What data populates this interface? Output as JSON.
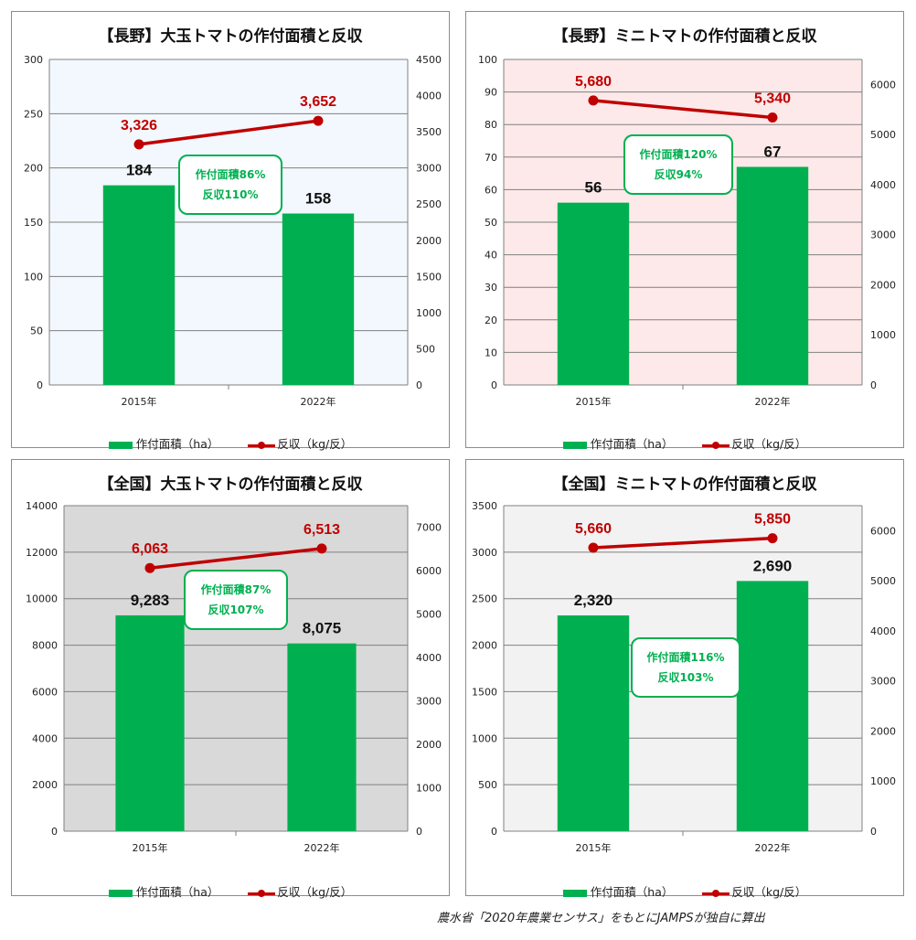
{
  "chart_data": [
    {
      "id": "p0",
      "type": "bar",
      "title": "【長野】大玉トマトの作付面積と反収",
      "categories": [
        "2015年",
        "2022年"
      ],
      "y_left": {
        "min": 0,
        "max": 300,
        "ticks": [
          0,
          50,
          100,
          150,
          200,
          250,
          300
        ]
      },
      "y_right": {
        "min": 0,
        "max": 4500,
        "ticks": [
          0,
          500,
          1000,
          1500,
          2000,
          2500,
          3000,
          3500,
          4000,
          4500
        ]
      },
      "series": [
        {
          "name": "作付面積（ha）",
          "type": "bar",
          "axis": "left",
          "values": [
            184,
            158
          ],
          "labels": [
            "184",
            "158"
          ]
        },
        {
          "name": "反収（kg/反）",
          "type": "line",
          "axis": "right",
          "values": [
            3326,
            3652
          ],
          "labels": [
            "3,326",
            "3,652"
          ]
        }
      ],
      "annotation": [
        "作付面積86%",
        "反収110%"
      ],
      "plot_background": "#f2f8fd",
      "grid": true,
      "legend": "bottom"
    },
    {
      "id": "p1",
      "type": "bar",
      "title": "【長野】ミニトマトの作付面積と反収",
      "categories": [
        "2015年",
        "2022年"
      ],
      "y_left": {
        "min": 0,
        "max": 100,
        "ticks": [
          0,
          10,
          20,
          30,
          40,
          50,
          60,
          70,
          80,
          90,
          100
        ]
      },
      "y_right": {
        "min": 0,
        "max": 6500,
        "ticks": [
          0,
          1000,
          2000,
          3000,
          4000,
          5000,
          6000
        ]
      },
      "series": [
        {
          "name": "作付面積（ha）",
          "type": "bar",
          "axis": "left",
          "values": [
            56,
            67
          ],
          "labels": [
            "56",
            "67"
          ]
        },
        {
          "name": "反収（kg/反）",
          "type": "line",
          "axis": "right",
          "values": [
            5680,
            5340
          ],
          "labels": [
            "5,680",
            "5,340"
          ]
        }
      ],
      "annotation": [
        "作付面積120%",
        "反収94%"
      ],
      "plot_background": "#fde9e9",
      "grid": true,
      "legend": "bottom"
    },
    {
      "id": "p2",
      "type": "bar",
      "title": "【全国】大玉トマトの作付面積と反収",
      "categories": [
        "2015年",
        "2022年"
      ],
      "y_left": {
        "min": 0,
        "max": 14000,
        "ticks": [
          0,
          2000,
          4000,
          6000,
          8000,
          10000,
          12000,
          14000
        ]
      },
      "y_right": {
        "min": 0,
        "max": 7500,
        "ticks": [
          0,
          1000,
          2000,
          3000,
          4000,
          5000,
          6000,
          7000
        ]
      },
      "series": [
        {
          "name": "作付面積（ha）",
          "type": "bar",
          "axis": "left",
          "values": [
            9283,
            8075
          ],
          "labels": [
            "9,283",
            "8,075"
          ]
        },
        {
          "name": "反収（kg/反）",
          "type": "line",
          "axis": "right",
          "values": [
            6063,
            6513
          ],
          "labels": [
            "6,063",
            "6,513"
          ]
        }
      ],
      "annotation": [
        "作付面積87%",
        "反収107%"
      ],
      "plot_background": "#d9d9d9",
      "grid": true,
      "legend": "bottom"
    },
    {
      "id": "p3",
      "type": "bar",
      "title": "【全国】ミニトマトの作付面積と反収",
      "categories": [
        "2015年",
        "2022年"
      ],
      "y_left": {
        "min": 0,
        "max": 3500,
        "ticks": [
          0,
          500,
          1000,
          1500,
          2000,
          2500,
          3000,
          3500
        ]
      },
      "y_right": {
        "min": 0,
        "max": 6500,
        "ticks": [
          0,
          1000,
          2000,
          3000,
          4000,
          5000,
          6000
        ]
      },
      "series": [
        {
          "name": "作付面積（ha）",
          "type": "bar",
          "axis": "left",
          "values": [
            2320,
            2690
          ],
          "labels": [
            "2,320",
            "2,690"
          ]
        },
        {
          "name": "反収（kg/反）",
          "type": "line",
          "axis": "right",
          "values": [
            5660,
            5850
          ],
          "labels": [
            "5,660",
            "5,850"
          ]
        }
      ],
      "annotation": [
        "作付面積116%",
        "反収103%"
      ],
      "plot_background": "#f2f2f2",
      "grid": true,
      "legend": "bottom"
    }
  ],
  "colors": {
    "bar": "#00b050",
    "line": "#c00000",
    "gridline": "#808080"
  },
  "legend_labels": {
    "bar": "作付面積（ha）",
    "line": "反収（kg/反）"
  },
  "source_note": "農水省「2020年農業センサス」をもとにJAMPSが独自に算出"
}
